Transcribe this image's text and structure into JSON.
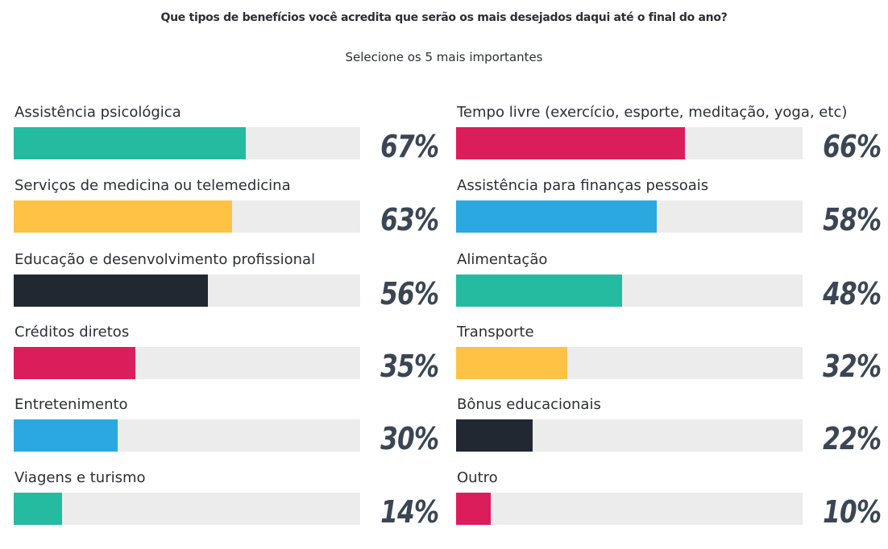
{
  "chart_data": {
    "type": "bar",
    "title": "Que tipos de benefícios você acredita que serão os mais desejados daqui até o final do ano?",
    "subtitle": "Selecione os 5 mais importantes",
    "unit": "%",
    "xlim": [
      0,
      100
    ],
    "columns": [
      {
        "items": [
          {
            "label": "Assistência psicológica",
            "value": 67,
            "value_label": "67%",
            "color": "#25bba1"
          },
          {
            "label": "Serviços de medicina ou telemedicina",
            "value": 63,
            "value_label": "63%",
            "color": "#fec344"
          },
          {
            "label": "Educação e desenvolvimento profissional",
            "value": 56,
            "value_label": "56%",
            "color": "#222832"
          },
          {
            "label": "Créditos diretos",
            "value": 35,
            "value_label": "35%",
            "color": "#dc1d5c"
          },
          {
            "label": "Entretenimento",
            "value": 30,
            "value_label": "30%",
            "color": "#2aa9e1"
          },
          {
            "label": "Viagens e turismo",
            "value": 14,
            "value_label": "14%",
            "color": "#25bba1"
          }
        ]
      },
      {
        "items": [
          {
            "label": "Tempo livre (exercício, esporte, meditação, yoga, etc)",
            "value": 66,
            "value_label": "66%",
            "color": "#dc1d5c"
          },
          {
            "label": "Assistência para finanças pessoais",
            "value": 58,
            "value_label": "58%",
            "color": "#2aa9e1"
          },
          {
            "label": "Alimentação",
            "value": 48,
            "value_label": "48%",
            "color": "#25bba1"
          },
          {
            "label": "Transporte",
            "value": 32,
            "value_label": "32%",
            "color": "#fec344"
          },
          {
            "label": "Bônus educacionais",
            "value": 22,
            "value_label": "22%",
            "color": "#222832"
          },
          {
            "label": "Outro",
            "value": 10,
            "value_label": "10%",
            "color": "#dc1d5c"
          }
        ]
      }
    ],
    "track_color": "#ececec",
    "grid": false
  }
}
